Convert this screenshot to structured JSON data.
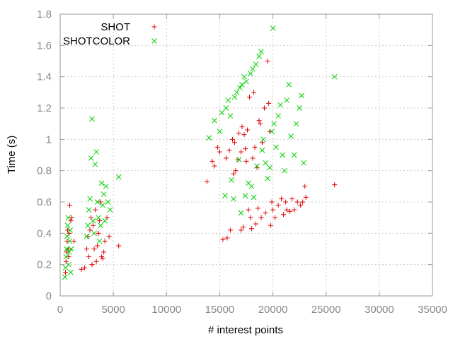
{
  "chart_data": {
    "type": "scatter",
    "title": "",
    "xlabel": "# interest points",
    "ylabel": "Time (s)",
    "xlim": [
      0,
      35000
    ],
    "ylim": [
      0,
      1.8
    ],
    "x_ticks": [
      0,
      5000,
      10000,
      15000,
      20000,
      25000,
      30000,
      35000
    ],
    "y_ticks": [
      0,
      0.2,
      0.4,
      0.6,
      0.8,
      1,
      1.2,
      1.4,
      1.6,
      1.8
    ],
    "grid": true,
    "legend_position": "top-left",
    "series": [
      {
        "name": "SHOT",
        "color": "#e00000",
        "marker": "plus",
        "points": [
          [
            500,
            0.15
          ],
          [
            550,
            0.22
          ],
          [
            600,
            0.28
          ],
          [
            650,
            0.35
          ],
          [
            700,
            0.42
          ],
          [
            750,
            0.3
          ],
          [
            800,
            0.25
          ],
          [
            850,
            0.4
          ],
          [
            900,
            0.58
          ],
          [
            1000,
            0.48
          ],
          [
            1100,
            0.5
          ],
          [
            1300,
            0.35
          ],
          [
            2000,
            0.17
          ],
          [
            2300,
            0.18
          ],
          [
            2500,
            0.3
          ],
          [
            2600,
            0.38
          ],
          [
            2700,
            0.25
          ],
          [
            2800,
            0.42
          ],
          [
            2900,
            0.5
          ],
          [
            3000,
            0.2
          ],
          [
            3100,
            0.45
          ],
          [
            3200,
            0.3
          ],
          [
            3300,
            0.55
          ],
          [
            3400,
            0.22
          ],
          [
            3500,
            0.32
          ],
          [
            3600,
            0.4
          ],
          [
            3700,
            0.48
          ],
          [
            3800,
            0.6
          ],
          [
            3900,
            0.25
          ],
          [
            4000,
            0.24
          ],
          [
            4100,
            0.28
          ],
          [
            4200,
            0.35
          ],
          [
            4400,
            0.5
          ],
          [
            4600,
            0.38
          ],
          [
            5500,
            0.32
          ],
          [
            13800,
            0.73
          ],
          [
            14300,
            0.86
          ],
          [
            14500,
            0.83
          ],
          [
            14800,
            0.95
          ],
          [
            15000,
            0.92
          ],
          [
            15300,
            0.36
          ],
          [
            15600,
            0.88
          ],
          [
            15700,
            0.37
          ],
          [
            15900,
            0.93
          ],
          [
            16000,
            0.42
          ],
          [
            16200,
            1.0
          ],
          [
            16300,
            0.78
          ],
          [
            16400,
            0.98
          ],
          [
            16500,
            0.8
          ],
          [
            16700,
            0.87
          ],
          [
            16800,
            1.04
          ],
          [
            17000,
            0.92
          ],
          [
            17000,
            0.42
          ],
          [
            17100,
            1.08
          ],
          [
            17200,
            0.44
          ],
          [
            17300,
            1.03
          ],
          [
            17400,
            0.94
          ],
          [
            17500,
            0.86
          ],
          [
            17600,
            1.06
          ],
          [
            17700,
            0.55
          ],
          [
            17800,
            1.27
          ],
          [
            17900,
            0.5
          ],
          [
            18000,
            0.43
          ],
          [
            18100,
            0.88
          ],
          [
            18200,
            1.3
          ],
          [
            18300,
            0.95
          ],
          [
            18400,
            0.46
          ],
          [
            18500,
            0.82
          ],
          [
            18600,
            0.56
          ],
          [
            18700,
            1.12
          ],
          [
            18800,
            1.1
          ],
          [
            18900,
            0.5
          ],
          [
            19000,
            0.98
          ],
          [
            19200,
            1.2
          ],
          [
            19300,
            0.53
          ],
          [
            19500,
            1.5
          ],
          [
            19600,
            1.23
          ],
          [
            19700,
            1.05
          ],
          [
            19800,
            0.45
          ],
          [
            19900,
            0.6
          ],
          [
            20000,
            0.55
          ],
          [
            20200,
            0.5
          ],
          [
            20500,
            0.58
          ],
          [
            20800,
            0.62
          ],
          [
            21000,
            0.52
          ],
          [
            21200,
            0.6
          ],
          [
            21300,
            0.55
          ],
          [
            21600,
            0.54
          ],
          [
            21800,
            0.62
          ],
          [
            22000,
            0.55
          ],
          [
            22300,
            0.6
          ],
          [
            22600,
            0.58
          ],
          [
            22800,
            0.6
          ],
          [
            23000,
            0.7
          ],
          [
            23100,
            0.63
          ],
          [
            25800,
            0.71
          ]
        ]
      },
      {
        "name": "SHOTCOLOR",
        "color": "#00d000",
        "marker": "x",
        "points": [
          [
            450,
            0.12
          ],
          [
            500,
            0.18
          ],
          [
            550,
            0.25
          ],
          [
            600,
            0.3
          ],
          [
            650,
            0.38
          ],
          [
            700,
            0.45
          ],
          [
            750,
            0.5
          ],
          [
            800,
            0.2
          ],
          [
            850,
            0.28
          ],
          [
            900,
            0.35
          ],
          [
            950,
            0.42
          ],
          [
            1000,
            0.15
          ],
          [
            1050,
            0.3
          ],
          [
            2500,
            0.38
          ],
          [
            2600,
            0.45
          ],
          [
            2700,
            0.55
          ],
          [
            2800,
            0.62
          ],
          [
            2900,
            0.88
          ],
          [
            3000,
            1.13
          ],
          [
            3100,
            0.48
          ],
          [
            3200,
            0.4
          ],
          [
            3300,
            0.84
          ],
          [
            3400,
            0.92
          ],
          [
            3500,
            0.6
          ],
          [
            3600,
            0.5
          ],
          [
            3700,
            0.35
          ],
          [
            3800,
            0.45
          ],
          [
            3900,
            0.72
          ],
          [
            4000,
            0.58
          ],
          [
            4100,
            0.65
          ],
          [
            4200,
            0.48
          ],
          [
            4300,
            0.7
          ],
          [
            4500,
            0.6
          ],
          [
            4700,
            0.55
          ],
          [
            5500,
            0.76
          ],
          [
            14000,
            1.01
          ],
          [
            14500,
            1.12
          ],
          [
            15000,
            1.05
          ],
          [
            15200,
            1.17
          ],
          [
            15500,
            0.64
          ],
          [
            15600,
            1.2
          ],
          [
            15800,
            1.25
          ],
          [
            16000,
            1.15
          ],
          [
            16100,
            0.74
          ],
          [
            16300,
            0.62
          ],
          [
            16400,
            1.27
          ],
          [
            16600,
            1.3
          ],
          [
            16800,
            0.87
          ],
          [
            16900,
            1.33
          ],
          [
            17000,
            0.53
          ],
          [
            17100,
            1.35
          ],
          [
            17300,
            1.4
          ],
          [
            17400,
            0.64
          ],
          [
            17500,
            1.37
          ],
          [
            17700,
            0.72
          ],
          [
            17900,
            1.42
          ],
          [
            18000,
            0.7
          ],
          [
            18100,
            1.45
          ],
          [
            18200,
            0.63
          ],
          [
            18400,
            1.48
          ],
          [
            18500,
            0.83
          ],
          [
            18700,
            1.53
          ],
          [
            18900,
            1.56
          ],
          [
            19000,
            0.93
          ],
          [
            19100,
            1.0
          ],
          [
            19300,
            0.85
          ],
          [
            19500,
            0.75
          ],
          [
            19700,
            0.82
          ],
          [
            19900,
            1.05
          ],
          [
            20000,
            1.71
          ],
          [
            20100,
            1.1
          ],
          [
            20300,
            0.95
          ],
          [
            20500,
            1.15
          ],
          [
            20700,
            1.22
          ],
          [
            20900,
            0.9
          ],
          [
            21100,
            0.8
          ],
          [
            21300,
            1.25
          ],
          [
            21500,
            1.35
          ],
          [
            21700,
            1.02
          ],
          [
            22000,
            0.9
          ],
          [
            22200,
            1.1
          ],
          [
            22500,
            1.2
          ],
          [
            22700,
            1.28
          ],
          [
            22900,
            0.85
          ],
          [
            25800,
            1.4
          ]
        ]
      }
    ]
  }
}
